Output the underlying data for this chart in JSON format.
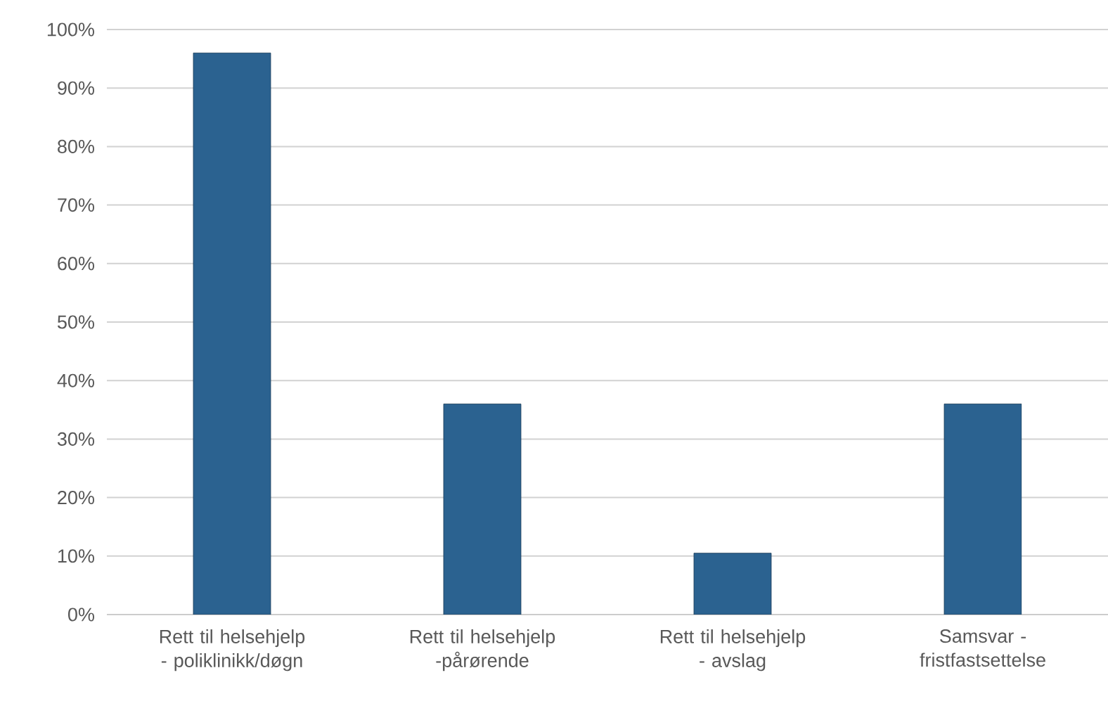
{
  "chart_data": {
    "type": "bar",
    "categories": [
      "Rett til helsehjelp - poliklinikk/døgn",
      "Rett til helsehjelp -pårørende",
      "Rett til helsehjelp - avslag",
      "Samsvar - fristfastsettelse"
    ],
    "values": [
      96,
      36,
      10.5,
      36
    ],
    "color": "#2b6290",
    "ylim": [
      0,
      100
    ],
    "yticks": [
      {
        "value": 0,
        "label": "0%"
      },
      {
        "value": 10,
        "label": "10%"
      },
      {
        "value": 20,
        "label": "20%"
      },
      {
        "value": 30,
        "label": "30%"
      },
      {
        "value": 40,
        "label": "40%"
      },
      {
        "value": 50,
        "label": "50%"
      },
      {
        "value": 60,
        "label": "60%"
      },
      {
        "value": 70,
        "label": "70%"
      },
      {
        "value": 80,
        "label": "80%"
      },
      {
        "value": 90,
        "label": "90%"
      },
      {
        "value": 100,
        "label": "100%"
      }
    ],
    "grid": "y"
  }
}
